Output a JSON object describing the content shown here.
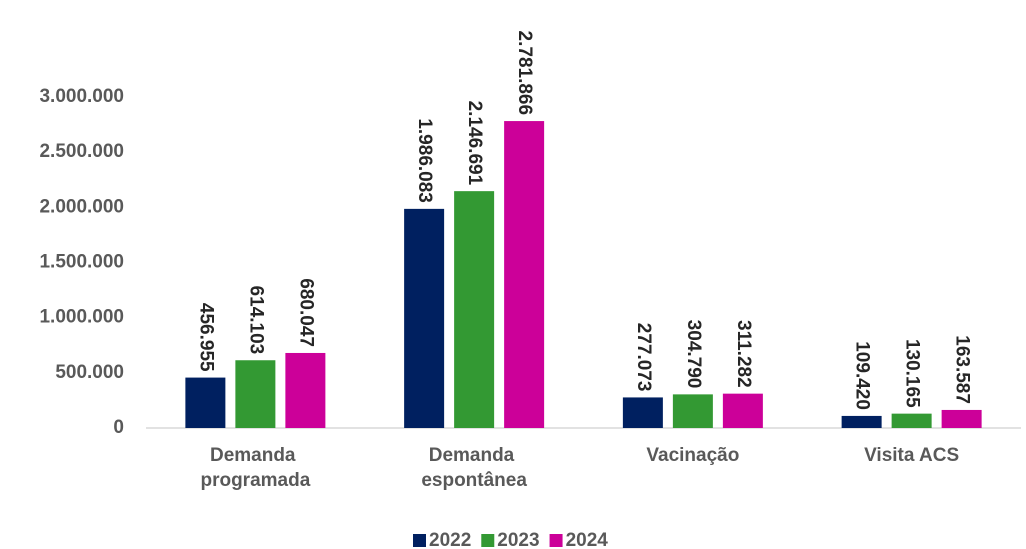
{
  "chart_data": {
    "type": "bar",
    "categories": [
      "Demanda programada",
      "Demanda espontânea",
      "Vacinação",
      "Visita ACS"
    ],
    "series": [
      {
        "name": "2022",
        "color": "#002060",
        "values": [
          456955,
          1986083,
          277073,
          109420
        ],
        "value_labels": [
          "456.955",
          "1.986.083",
          "277.073",
          "109.420"
        ]
      },
      {
        "name": "2023",
        "color": "#339933",
        "values": [
          614103,
          2146691,
          304790,
          130165
        ],
        "value_labels": [
          "614.103",
          "2.146.691",
          "304.790",
          "130.165"
        ]
      },
      {
        "name": "2024",
        "color": "#cc0099",
        "values": [
          680047,
          2781866,
          311282,
          163587
        ],
        "value_labels": [
          "680.047",
          "2.781.866",
          "311.282",
          "163.587"
        ]
      }
    ],
    "ylim": [
      0,
      3000000
    ],
    "yticks": [
      0,
      {
        "value": 500000,
        "label": "500.000"
      },
      {
        "value": 1000000,
        "label": "1.000.000"
      },
      {
        "value": 1500000,
        "label": "1.500.000"
      },
      {
        "value": 2000000,
        "label": "2.000.000"
      },
      {
        "value": 2500000,
        "label": "2.500.000"
      },
      {
        "value": 3000000,
        "label": "3.000.000"
      }
    ],
    "grid": false,
    "legend": "bottom"
  }
}
